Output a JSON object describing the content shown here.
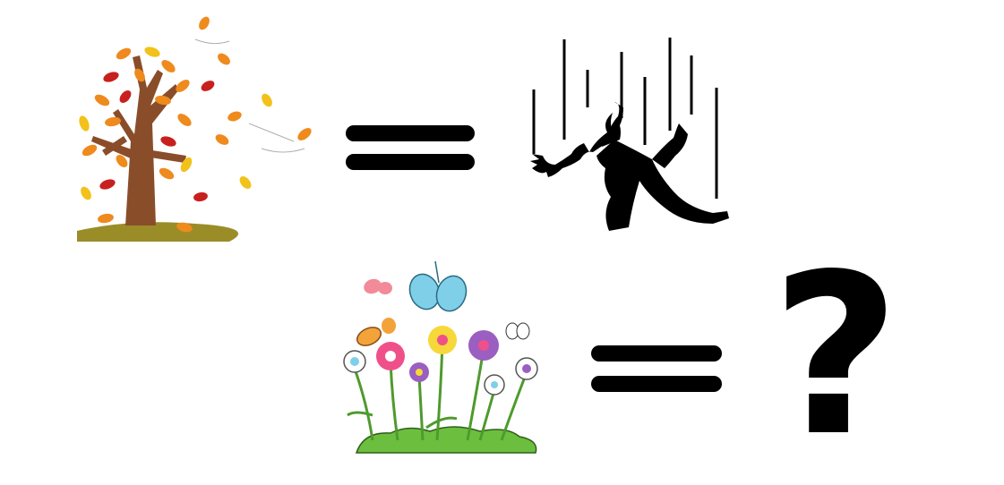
{
  "colors": {
    "ink": "#000000",
    "trunk": "#8a4d2a",
    "leaf_orange": "#ef8a1d",
    "leaf_red": "#c8201e",
    "leaf_yellow": "#f2c21b",
    "ground_olive": "#9a8d28",
    "grass_green": "#6cbf3e",
    "stem_green": "#4f9a2d",
    "butterfly_blue": "#7fcfe8",
    "butterfly_pink": "#f28a9a",
    "butterfly_orange": "#f2a33a",
    "flower_pink": "#f0508a",
    "flower_yellow": "#f6d83a",
    "flower_purple": "#9a5fc0"
  },
  "panels": [
    {
      "name": "autumn-tree",
      "icon": "autumn-tree-icon"
    },
    {
      "name": "equals-sign",
      "icon": "equals-icon"
    },
    {
      "name": "falling-person",
      "icon": "falling-person-icon"
    },
    {
      "name": "spring-flowers",
      "icon": "spring-flowers-icon"
    },
    {
      "name": "equals-sign",
      "icon": "equals-icon"
    },
    {
      "name": "unknown-answer",
      "icon": "question-mark-icon"
    }
  ],
  "question": {
    "symbol": "?"
  }
}
